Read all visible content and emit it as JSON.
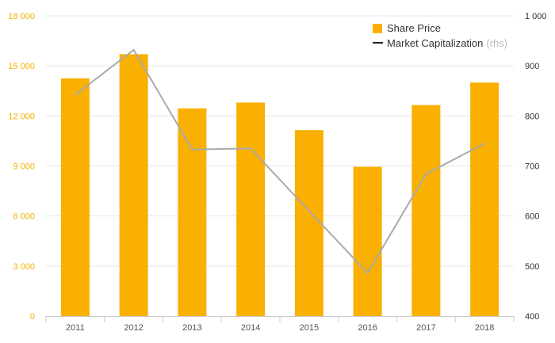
{
  "chart_data": {
    "type": "bar",
    "categories": [
      "2011",
      "2012",
      "2013",
      "2014",
      "2015",
      "2016",
      "2017",
      "2018"
    ],
    "series": [
      {
        "name": "Share Price",
        "type": "bar",
        "axis": "left",
        "color": "#f9b000",
        "values": [
          14250,
          15700,
          12450,
          12800,
          11150,
          8950,
          12650,
          14000
        ]
      },
      {
        "name": "Market Capitalization",
        "name_note": "(rhs)",
        "type": "line",
        "axis": "right",
        "color": "#aaaaaa",
        "values": [
          842,
          932,
          733,
          735,
          610,
          486,
          684,
          745
        ]
      }
    ],
    "y_left": {
      "ylim": [
        0,
        18000
      ],
      "ticks": [
        0,
        3000,
        6000,
        9000,
        12000,
        15000,
        18000
      ],
      "tick_labels": [
        "0",
        "3 000",
        "6 000",
        "9 000",
        "12 000",
        "15 000",
        "18 000"
      ],
      "color": "#f2b000"
    },
    "y_right": {
      "ylim": [
        400,
        1000
      ],
      "ticks": [
        400,
        500,
        600,
        700,
        800,
        900,
        1000
      ],
      "tick_labels": [
        "400",
        "500",
        "600",
        "700",
        "800",
        "900",
        "1 000"
      ],
      "color": "#333333"
    },
    "grid": true,
    "legend": {
      "position": "top-right",
      "bar_label": "Share Price",
      "line_label": "Market Capitalization",
      "line_note": "(rhs)"
    }
  }
}
